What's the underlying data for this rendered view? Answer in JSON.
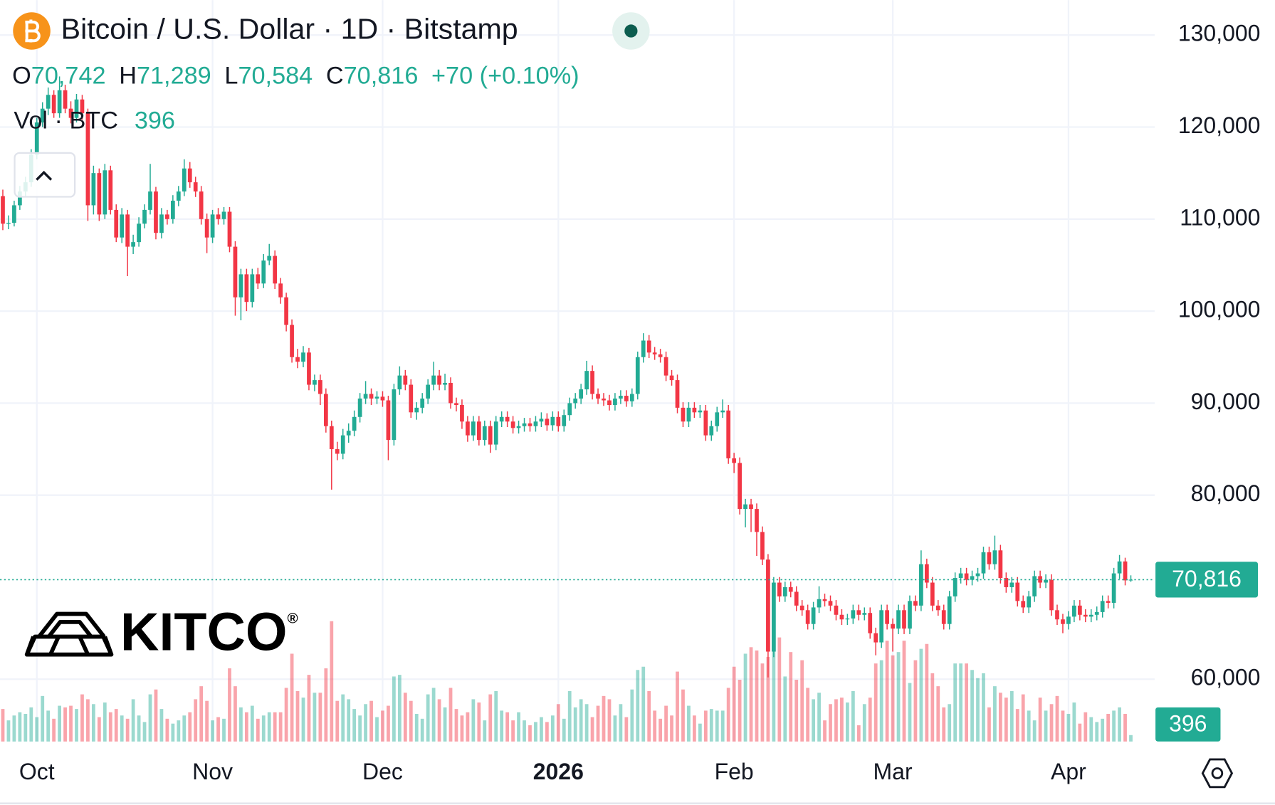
{
  "header": {
    "title": "Bitcoin / U.S. Dollar · 1D · Bitstamp",
    "open_label": "O",
    "open": "70,742",
    "high_label": "H",
    "high": "71,289",
    "low_label": "L",
    "low": "70,584",
    "close_label": "C",
    "close": "70,816",
    "change": "+70 (+0.10%)",
    "volume_label": "Vol · BTC",
    "volume": "396"
  },
  "watermark": {
    "name": "KITCO",
    "mark": "®"
  },
  "chart_data": {
    "type": "candlestick",
    "up_color": "#22ab94",
    "down_color": "#f23645",
    "xlim": [
      -0.5,
      203.2
    ],
    "xticks": [
      {
        "value": 6,
        "label": "Oct"
      },
      {
        "value": 37,
        "label": "Nov"
      },
      {
        "value": 67,
        "label": "Dec"
      },
      {
        "value": 98,
        "label": "2026",
        "bold": true
      },
      {
        "value": 129,
        "label": "Feb"
      },
      {
        "value": 157,
        "label": "Mar"
      },
      {
        "value": 188,
        "label": "Apr"
      }
    ],
    "ylim": [
      53230,
      133800
    ],
    "yticks": [
      {
        "value": 60000,
        "label": "60,000"
      },
      {
        "value": 80000,
        "label": "80,000"
      },
      {
        "value": 90000,
        "label": "90,000"
      },
      {
        "value": 100000,
        "label": "100,000"
      },
      {
        "value": 110000,
        "label": "110,000"
      },
      {
        "value": 120000,
        "label": "120,000"
      },
      {
        "value": 130000,
        "label": "130,000"
      }
    ],
    "grid": true,
    "last_price": {
      "value": 70816,
      "label": "70,816"
    },
    "volume_lim": [
      0,
      15000
    ],
    "ohlc": [
      [
        112500,
        113200,
        108800,
        109500
      ],
      [
        109500,
        110400,
        108900,
        109600
      ],
      [
        109600,
        112000,
        109200,
        111500
      ],
      [
        111500,
        113600,
        111000,
        113000
      ],
      [
        113000,
        114600,
        112400,
        114000
      ],
      [
        114000,
        117600,
        113500,
        117000
      ],
      [
        117000,
        121000,
        116500,
        120500
      ],
      [
        120500,
        122700,
        120000,
        122000
      ],
      [
        122000,
        124300,
        121300,
        123500
      ],
      [
        123500,
        124000,
        121000,
        121500
      ],
      [
        121500,
        125500,
        121000,
        124000
      ],
      [
        124000,
        124600,
        121500,
        122000
      ],
      [
        122000,
        122800,
        120400,
        121000
      ],
      [
        121000,
        123600,
        120500,
        123000
      ],
      [
        123000,
        123500,
        120800,
        121500
      ],
      [
        121500,
        122000,
        109800,
        111500
      ],
      [
        111500,
        115800,
        110500,
        115000
      ],
      [
        115000,
        115500,
        109800,
        110500
      ],
      [
        110500,
        116000,
        110000,
        115300
      ],
      [
        115300,
        115800,
        110500,
        111000
      ],
      [
        111000,
        111600,
        107500,
        108000
      ],
      [
        108000,
        111200,
        107400,
        110500
      ],
      [
        110500,
        111000,
        103800,
        107000
      ],
      [
        107000,
        108300,
        106200,
        107500
      ],
      [
        107500,
        110200,
        107000,
        109500
      ],
      [
        109500,
        111600,
        109000,
        111000
      ],
      [
        111000,
        116000,
        110500,
        113000
      ],
      [
        113000,
        113500,
        107800,
        108500
      ],
      [
        108500,
        111200,
        107900,
        110500
      ],
      [
        110500,
        111000,
        109400,
        110000
      ],
      [
        110000,
        112600,
        109500,
        112000
      ],
      [
        112000,
        113600,
        111400,
        113000
      ],
      [
        113000,
        116500,
        112500,
        115500
      ],
      [
        115500,
        116200,
        113400,
        114000
      ],
      [
        114000,
        114600,
        112400,
        113000
      ],
      [
        113000,
        113600,
        109400,
        110000
      ],
      [
        110000,
        110600,
        106300,
        108000
      ],
      [
        108000,
        111000,
        107400,
        110500
      ],
      [
        110500,
        111200,
        109400,
        110000
      ],
      [
        110000,
        111300,
        109400,
        110800
      ],
      [
        110800,
        111300,
        106400,
        107000
      ],
      [
        107000,
        107600,
        99500,
        101500
      ],
      [
        101500,
        104600,
        99000,
        104000
      ],
      [
        104000,
        104600,
        100000,
        101000
      ],
      [
        101000,
        104600,
        100400,
        104000
      ],
      [
        104000,
        104700,
        102400,
        103000
      ],
      [
        103000,
        106200,
        102500,
        105500
      ],
      [
        105500,
        107300,
        105000,
        106000
      ],
      [
        106000,
        106600,
        102400,
        103000
      ],
      [
        103000,
        103600,
        100800,
        101500
      ],
      [
        101500,
        102000,
        97800,
        98500
      ],
      [
        98500,
        99100,
        94400,
        95000
      ],
      [
        95000,
        95900,
        93800,
        94500
      ],
      [
        94500,
        96200,
        93900,
        95500
      ],
      [
        95500,
        96000,
        91400,
        92000
      ],
      [
        92000,
        93100,
        91300,
        92500
      ],
      [
        92500,
        93100,
        89800,
        91000
      ],
      [
        91000,
        91600,
        86800,
        87500
      ],
      [
        87500,
        88100,
        80600,
        85000
      ],
      [
        85000,
        85800,
        83800,
        84500
      ],
      [
        84500,
        87200,
        83900,
        86500
      ],
      [
        86500,
        87800,
        85700,
        87000
      ],
      [
        87000,
        89200,
        86400,
        88500
      ],
      [
        88500,
        91100,
        87900,
        90500
      ],
      [
        90500,
        92400,
        89900,
        91000
      ],
      [
        91000,
        91600,
        89800,
        90500
      ],
      [
        90500,
        91300,
        89900,
        90700
      ],
      [
        90700,
        91300,
        89600,
        90300
      ],
      [
        90300,
        90800,
        83800,
        86000
      ],
      [
        86000,
        92100,
        85400,
        91500
      ],
      [
        91500,
        94000,
        90900,
        93000
      ],
      [
        93000,
        93600,
        91400,
        92000
      ],
      [
        92000,
        92600,
        88400,
        89000
      ],
      [
        89000,
        90100,
        88200,
        89500
      ],
      [
        89500,
        91100,
        88900,
        90500
      ],
      [
        90500,
        92600,
        89900,
        92000
      ],
      [
        92000,
        94500,
        91400,
        93000
      ],
      [
        93000,
        93600,
        91400,
        92000
      ],
      [
        92000,
        93200,
        91400,
        92200
      ],
      [
        92200,
        92800,
        89400,
        90000
      ],
      [
        90000,
        90600,
        89100,
        89800
      ],
      [
        89800,
        90400,
        87200,
        88000
      ],
      [
        88000,
        88600,
        85800,
        86500
      ],
      [
        86500,
        88600,
        85900,
        88000
      ],
      [
        88000,
        88600,
        85400,
        86000
      ],
      [
        86000,
        88100,
        85400,
        87500
      ],
      [
        87500,
        88100,
        84600,
        85500
      ],
      [
        85500,
        88600,
        84900,
        88000
      ],
      [
        88000,
        89100,
        87400,
        88500
      ],
      [
        88500,
        89100,
        87400,
        88000
      ],
      [
        88000,
        88600,
        86700,
        87300
      ],
      [
        87300,
        88100,
        86700,
        87500
      ],
      [
        87500,
        88400,
        86900,
        87800
      ],
      [
        87800,
        88400,
        86900,
        87500
      ],
      [
        87500,
        88600,
        86900,
        88000
      ],
      [
        88000,
        89000,
        87400,
        88300
      ],
      [
        88300,
        88900,
        87000,
        87600
      ],
      [
        87600,
        89100,
        87000,
        88500
      ],
      [
        88500,
        89100,
        86900,
        87500
      ],
      [
        87500,
        89300,
        86900,
        88700
      ],
      [
        88700,
        90600,
        88100,
        90000
      ],
      [
        90000,
        91100,
        89400,
        90500
      ],
      [
        90500,
        92100,
        89900,
        91500
      ],
      [
        91500,
        94600,
        90900,
        93500
      ],
      [
        93500,
        94100,
        90400,
        91000
      ],
      [
        91000,
        91600,
        89900,
        90500
      ],
      [
        90500,
        91100,
        89700,
        90300
      ],
      [
        90300,
        90900,
        89200,
        89800
      ],
      [
        89800,
        91100,
        89200,
        90500
      ],
      [
        90500,
        91400,
        89900,
        90800
      ],
      [
        90800,
        91400,
        89600,
        90200
      ],
      [
        90200,
        91600,
        89600,
        91000
      ],
      [
        91000,
        95600,
        90400,
        95000
      ],
      [
        95000,
        97600,
        94400,
        96800
      ],
      [
        96800,
        97400,
        94900,
        95500
      ],
      [
        95500,
        96100,
        94700,
        95300
      ],
      [
        95300,
        95900,
        94400,
        95000
      ],
      [
        95000,
        95600,
        92400,
        93000
      ],
      [
        93000,
        93600,
        91900,
        92500
      ],
      [
        92500,
        93100,
        88900,
        89500
      ],
      [
        89500,
        90100,
        87400,
        88000
      ],
      [
        88000,
        90100,
        87400,
        89500
      ],
      [
        89500,
        90100,
        88400,
        89000
      ],
      [
        89000,
        89800,
        88400,
        89200
      ],
      [
        89200,
        89800,
        85900,
        86500
      ],
      [
        86500,
        88100,
        85900,
        87500
      ],
      [
        87500,
        89600,
        86900,
        89000
      ],
      [
        89000,
        90400,
        88400,
        89200
      ],
      [
        89200,
        89800,
        83400,
        84000
      ],
      [
        84000,
        84600,
        82400,
        83500
      ],
      [
        83500,
        84100,
        77900,
        78500
      ],
      [
        78500,
        79600,
        76500,
        79000
      ],
      [
        79000,
        79600,
        76000,
        78500
      ],
      [
        78500,
        79100,
        73400,
        76000
      ],
      [
        76000,
        76600,
        72400,
        73000
      ],
      [
        73000,
        73600,
        60200,
        63000
      ],
      [
        63000,
        71100,
        62400,
        70500
      ],
      [
        70500,
        71100,
        68400,
        69000
      ],
      [
        69000,
        70600,
        68400,
        70000
      ],
      [
        70000,
        70600,
        68900,
        69500
      ],
      [
        69500,
        70100,
        67400,
        68000
      ],
      [
        68000,
        68600,
        66900,
        67500
      ],
      [
        67500,
        68100,
        65400,
        66000
      ],
      [
        66000,
        68400,
        65400,
        67800
      ],
      [
        67800,
        70100,
        67200,
        68700
      ],
      [
        68700,
        69300,
        67900,
        68500
      ],
      [
        68500,
        69100,
        67400,
        68000
      ],
      [
        68000,
        68600,
        66400,
        67000
      ],
      [
        67000,
        67600,
        65900,
        66500
      ],
      [
        66500,
        67100,
        65900,
        66600
      ],
      [
        66600,
        68100,
        66000,
        67500
      ],
      [
        67500,
        68100,
        66400,
        67000
      ],
      [
        67000,
        67800,
        66400,
        67200
      ],
      [
        67200,
        67800,
        64400,
        65000
      ],
      [
        65000,
        65600,
        62600,
        64000
      ],
      [
        64000,
        68100,
        63400,
        67500
      ],
      [
        67500,
        68100,
        65400,
        66000
      ],
      [
        66000,
        66600,
        63000,
        65500
      ],
      [
        65500,
        68100,
        64900,
        67500
      ],
      [
        67500,
        68100,
        64900,
        65500
      ],
      [
        65500,
        69100,
        64900,
        68500
      ],
      [
        68500,
        69100,
        67400,
        68000
      ],
      [
        68000,
        74000,
        67400,
        72500
      ],
      [
        72500,
        73100,
        69900,
        70500
      ],
      [
        70500,
        71100,
        67400,
        68000
      ],
      [
        68000,
        68600,
        66900,
        67500
      ],
      [
        67500,
        68100,
        65400,
        66000
      ],
      [
        66000,
        69600,
        65400,
        69000
      ],
      [
        69000,
        71600,
        68400,
        71000
      ],
      [
        71000,
        72100,
        70400,
        71500
      ],
      [
        71500,
        72100,
        70200,
        70800
      ],
      [
        70800,
        71800,
        70200,
        71200
      ],
      [
        71200,
        72100,
        70600,
        71500
      ],
      [
        71500,
        74400,
        70900,
        73800
      ],
      [
        73800,
        74400,
        71900,
        72500
      ],
      [
        72500,
        75600,
        71900,
        74000
      ],
      [
        74000,
        74600,
        70400,
        71000
      ],
      [
        71000,
        71600,
        69400,
        70000
      ],
      [
        70000,
        71100,
        69400,
        70500
      ],
      [
        70500,
        71100,
        67900,
        68500
      ],
      [
        68500,
        69100,
        67200,
        67800
      ],
      [
        67800,
        69600,
        67200,
        69000
      ],
      [
        69000,
        71800,
        68400,
        71200
      ],
      [
        71200,
        71800,
        69900,
        70500
      ],
      [
        70500,
        71400,
        69900,
        70800
      ],
      [
        70800,
        71400,
        66900,
        67500
      ],
      [
        67500,
        68100,
        65900,
        66500
      ],
      [
        66500,
        67100,
        65000,
        66000
      ],
      [
        66000,
        67400,
        65400,
        66800
      ],
      [
        66800,
        68600,
        66200,
        68000
      ],
      [
        68000,
        68600,
        66400,
        67000
      ],
      [
        67000,
        67600,
        66200,
        66800
      ],
      [
        66800,
        67600,
        66200,
        67000
      ],
      [
        67000,
        67900,
        66400,
        67300
      ],
      [
        67300,
        69100,
        66700,
        68500
      ],
      [
        68500,
        69100,
        67700,
        68300
      ],
      [
        68300,
        72100,
        67700,
        71500
      ],
      [
        71500,
        73500,
        70900,
        72800
      ],
      [
        72800,
        73200,
        70200,
        70742
      ],
      [
        70742,
        71289,
        70584,
        70816
      ]
    ],
    "volume": [
      2000,
      1300,
      1600,
      1800,
      1700,
      2100,
      1500,
      2800,
      1900,
      1400,
      2200,
      2100,
      2200,
      2000,
      2900,
      2600,
      2300,
      1500,
      2400,
      1800,
      2000,
      1600,
      1400,
      2600,
      1600,
      1200,
      2900,
      3200,
      2000,
      1400,
      1100,
      1300,
      1600,
      1800,
      2600,
      3400,
      2500,
      1300,
      1500,
      1400,
      4500,
      3400,
      2100,
      1800,
      2200,
      1400,
      1600,
      1800,
      1800,
      1800,
      3300,
      5400,
      3100,
      2700,
      4100,
      3000,
      3000,
      4500,
      7400,
      2500,
      2900,
      2600,
      2000,
      1600,
      2300,
      2500,
      1500,
      1900,
      2200,
      4000,
      4100,
      3000,
      2500,
      1700,
      1400,
      2900,
      3300,
      2600,
      2100,
      3300,
      2000,
      1600,
      1800,
      2600,
      2400,
      1300,
      2900,
      3100,
      1900,
      1800,
      1300,
      1800,
      1300,
      1000,
      1200,
      1500,
      1200,
      1600,
      2300,
      1400,
      3100,
      2100,
      2600,
      2300,
      1500,
      2200,
      2800,
      2600,
      1600,
      2300,
      1500,
      3200,
      4400,
      4600,
      3100,
      1900,
      1400,
      2200,
      1600,
      4300,
      3200,
      2200,
      1600,
      1100,
      1900,
      2000,
      1900,
      1900,
      3300,
      4600,
      3800,
      5400,
      5800,
      5600,
      4800,
      5200,
      7400,
      6400,
      4000,
      5500,
      3800,
      5000,
      3300,
      2600,
      3000,
      1300,
      2300,
      2600,
      2700,
      2400,
      3100,
      1000,
      2300,
      2700,
      4800,
      5000,
      6200,
      5300,
      5500,
      6200,
      3600,
      5000,
      5700,
      6000,
      4200,
      3400,
      2100,
      2300,
      4800,
      4800,
      4800,
      4400,
      3900,
      4200,
      2100,
      3400,
      3000,
      2700,
      3100,
      2000,
      2900,
      1900,
      1300,
      2700,
      1900,
      2300,
      2800,
      1900,
      1700,
      2400,
      1100,
      1800,
      1500,
      1200,
      1400,
      1700,
      1900,
      2100,
      1700,
      396
    ]
  }
}
